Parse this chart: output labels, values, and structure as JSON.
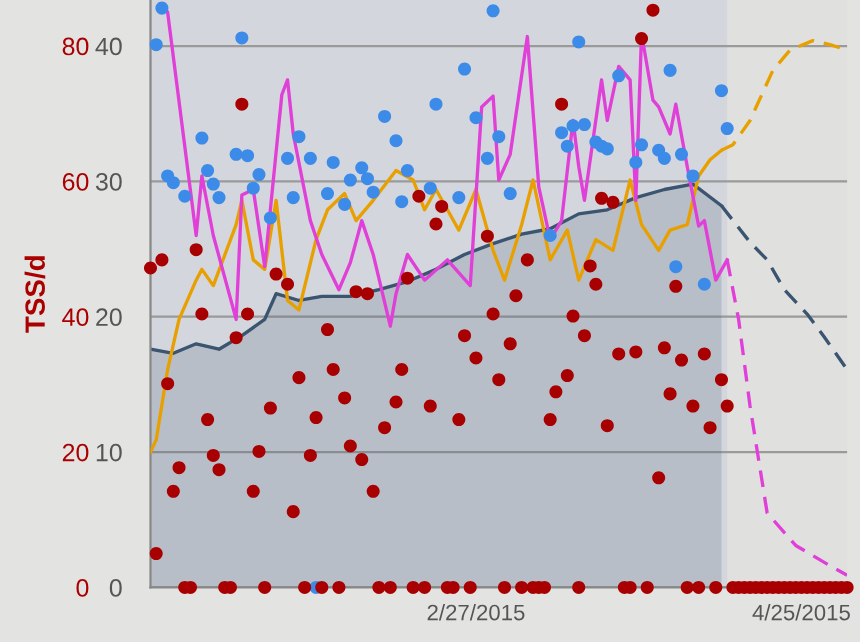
{
  "chart_data": {
    "type": "line",
    "y2label": "TSS/d",
    "xlim": [
      "2015-01-01",
      "2015-05-03"
    ],
    "xticks": [
      {
        "value": "2015-02-27",
        "label": "2/27/2015"
      },
      {
        "value": "2015-04-25",
        "label": "4/25/2015"
      }
    ],
    "ylim": [
      0,
      43.4
    ],
    "yticks": [
      0,
      10,
      20,
      30,
      40
    ],
    "y2lim": [
      0,
      86.8
    ],
    "y2ticks": [
      0,
      20,
      40,
      60,
      80
    ],
    "grid": "y",
    "bands": [
      {
        "axis": "x",
        "from": "2015-01-01",
        "to": "2015-04-12",
        "color": "#d3d6dc"
      }
    ],
    "series": [
      {
        "type": "area",
        "color": "#3b5470",
        "x": [
          "2015-01-01",
          "2015-01-05",
          "2015-01-09",
          "2015-01-13",
          "2015-01-17",
          "2015-01-21",
          "2015-01-23",
          "2015-01-27",
          "2015-01-31",
          "2015-02-05",
          "2015-02-10",
          "2015-02-15",
          "2015-02-20",
          "2015-02-25",
          "2015-03-02",
          "2015-03-07",
          "2015-03-12",
          "2015-03-17",
          "2015-03-22",
          "2015-03-27",
          "2015-04-01",
          "2015-04-06",
          "2015-04-11"
        ],
        "values": [
          17.6,
          17.3,
          18.0,
          17.6,
          18.6,
          19.8,
          21.7,
          21.2,
          21.5,
          21.5,
          22.0,
          22.6,
          23.5,
          24.6,
          25.4,
          26.1,
          26.5,
          27.6,
          27.9,
          28.8,
          29.4,
          29.8,
          28.2
        ]
      },
      {
        "line_style": "dashed",
        "color": "#3b5470",
        "x": [
          "2015-04-11",
          "2015-04-16",
          "2015-04-19",
          "2015-04-22",
          "2015-04-26",
          "2015-04-29",
          "2015-05-03"
        ],
        "values": [
          28.2,
          25.5,
          24.2,
          22.0,
          20.2,
          18.5,
          16.1
        ]
      },
      {
        "color": "#e8a000",
        "x": [
          "2015-01-01",
          "2015-01-02",
          "2015-01-04",
          "2015-01-06",
          "2015-01-09",
          "2015-01-10",
          "2015-01-12",
          "2015-01-16",
          "2015-01-17",
          "2015-01-19",
          "2015-01-21",
          "2015-01-23",
          "2015-01-25",
          "2015-01-27",
          "2015-01-30",
          "2015-02-01",
          "2015-02-04",
          "2015-02-06",
          "2015-02-09",
          "2015-02-13",
          "2015-02-16",
          "2015-02-18",
          "2015-02-20",
          "2015-02-22",
          "2015-02-24",
          "2015-02-27",
          "2015-03-02",
          "2015-03-04",
          "2015-03-07",
          "2015-03-09",
          "2015-03-12",
          "2015-03-15",
          "2015-03-17",
          "2015-03-20",
          "2015-03-23",
          "2015-03-26",
          "2015-03-28",
          "2015-03-31",
          "2015-04-02",
          "2015-04-05",
          "2015-04-07",
          "2015-04-09",
          "2015-04-11"
        ],
        "values": [
          10.0,
          10.9,
          16.1,
          19.8,
          22.7,
          23.5,
          22.3,
          26.8,
          28.6,
          24.2,
          23.5,
          28.6,
          21.2,
          20.5,
          25.7,
          27.9,
          29.1,
          27.1,
          28.6,
          30.8,
          30.1,
          27.9,
          29.4,
          27.9,
          26.4,
          29.4,
          24.9,
          22.7,
          26.8,
          30.1,
          24.2,
          26.4,
          22.7,
          25.7,
          24.9,
          30.1,
          26.8,
          24.9,
          26.4,
          26.8,
          30.4,
          31.6,
          32.3
        ]
      },
      {
        "line_style": "dashed",
        "color": "#e8a000",
        "x": [
          "2015-04-11",
          "2015-04-13",
          "2015-04-16",
          "2015-04-20",
          "2015-04-23",
          "2015-04-27",
          "2015-04-30",
          "2015-05-03"
        ],
        "values": [
          32.3,
          32.7,
          34.5,
          38.2,
          39.7,
          40.4,
          40.1,
          39.7
        ]
      },
      {
        "color": "#e040d8",
        "x": [
          "2015-01-03",
          "2015-01-04",
          "2015-01-09",
          "2015-01-10",
          "2015-01-12",
          "2015-01-16",
          "2015-01-17",
          "2015-01-19",
          "2015-01-21",
          "2015-01-24",
          "2015-01-25",
          "2015-01-26",
          "2015-01-29",
          "2015-01-31",
          "2015-02-03",
          "2015-02-05",
          "2015-02-07",
          "2015-02-09",
          "2015-02-12",
          "2015-02-13",
          "2015-02-15",
          "2015-02-18",
          "2015-02-22",
          "2015-02-26",
          "2015-02-28",
          "2015-03-02",
          "2015-03-03",
          "2015-03-05",
          "2015-03-08",
          "2015-03-10",
          "2015-03-12",
          "2015-03-14",
          "2015-03-16",
          "2015-03-17",
          "2015-03-18",
          "2015-03-21",
          "2015-03-22",
          "2015-03-24",
          "2015-03-26",
          "2015-03-27",
          "2015-03-28",
          "2015-03-30",
          "2015-03-31",
          "2015-04-02",
          "2015-04-03",
          "2015-04-05",
          "2015-04-07",
          "2015-04-08",
          "2015-04-10",
          "2015-04-12"
        ],
        "values": [
          43.0,
          42.5,
          26.0,
          30.4,
          26.0,
          19.8,
          29.0,
          29.4,
          23.7,
          36.4,
          37.5,
          33.5,
          27.1,
          24.6,
          22.0,
          24.0,
          27.1,
          24.6,
          19.3,
          21.7,
          24.6,
          22.7,
          24.2,
          22.3,
          35.5,
          36.3,
          30.1,
          32.0,
          40.7,
          29.6,
          25.7,
          27.1,
          34.5,
          31.1,
          28.6,
          37.5,
          34.5,
          38.5,
          37.5,
          28.6,
          40.9,
          36.0,
          35.5,
          33.5,
          35.7,
          31.1,
          26.7,
          27.1,
          22.7,
          24.2
        ]
      },
      {
        "line_style": "dashed",
        "color": "#e040d8",
        "x": [
          "2015-04-12",
          "2015-04-14",
          "2015-04-16",
          "2015-04-19",
          "2015-04-24",
          "2015-04-30",
          "2015-05-03"
        ],
        "values": [
          24.2,
          19.8,
          13.4,
          5.5,
          3.1,
          1.6,
          0.9
        ]
      },
      {
        "type": "scatter",
        "marker": "circle",
        "color": "#3d8be8",
        "x": [
          "2015-01-02",
          "2015-01-03",
          "2015-01-04",
          "2015-01-05",
          "2015-01-07",
          "2015-01-10",
          "2015-01-11",
          "2015-01-12",
          "2015-01-13",
          "2015-01-16",
          "2015-01-17",
          "2015-01-18",
          "2015-01-19",
          "2015-01-20",
          "2015-01-22",
          "2015-01-25",
          "2015-01-26",
          "2015-01-27",
          "2015-01-29",
          "2015-01-30",
          "2015-02-01",
          "2015-02-02",
          "2015-02-04",
          "2015-02-05",
          "2015-02-07",
          "2015-02-08",
          "2015-02-09",
          "2015-02-11",
          "2015-02-13",
          "2015-02-14",
          "2015-02-15",
          "2015-02-19",
          "2015-02-20",
          "2015-02-24",
          "2015-02-25",
          "2015-02-27",
          "2015-03-01",
          "2015-03-02",
          "2015-03-03",
          "2015-03-05",
          "2015-03-12",
          "2015-03-14",
          "2015-03-15",
          "2015-03-16",
          "2015-03-17",
          "2015-03-18",
          "2015-03-20",
          "2015-03-21",
          "2015-03-22",
          "2015-03-24",
          "2015-03-27",
          "2015-03-28",
          "2015-03-31",
          "2015-04-01",
          "2015-04-02",
          "2015-04-03",
          "2015-04-04",
          "2015-04-06",
          "2015-04-08",
          "2015-04-11",
          "2015-04-12"
        ],
        "values": [
          40.1,
          42.8,
          30.4,
          29.9,
          28.9,
          33.2,
          30.8,
          29.8,
          28.8,
          32.0,
          40.6,
          31.9,
          29.5,
          30.5,
          27.3,
          31.7,
          28.8,
          33.3,
          31.7,
          0,
          29.1,
          31.4,
          28.3,
          30.1,
          31.0,
          30.2,
          29.2,
          34.8,
          33.0,
          28.5,
          30.8,
          29.5,
          35.7,
          28.8,
          38.3,
          34.7,
          31.7,
          42.6,
          33.3,
          29.1,
          26.0,
          33.6,
          32.6,
          34.1,
          40.3,
          34.2,
          32.9,
          32.6,
          32.4,
          37.8,
          31.4,
          32.7,
          32.3,
          31.7,
          38.2,
          23.7,
          32.0,
          30.4,
          22.4,
          36.7,
          33.9
        ]
      },
      {
        "type": "scatter",
        "marker": "circle",
        "axis": "y2",
        "color": "#a80000",
        "x": [
          "2015-01-01",
          "2015-01-02",
          "2015-01-03",
          "2015-01-04",
          "2015-01-05",
          "2015-01-06",
          "2015-01-07",
          "2015-01-08",
          "2015-01-09",
          "2015-01-10",
          "2015-01-11",
          "2015-01-12",
          "2015-01-13",
          "2015-01-14",
          "2015-01-15",
          "2015-01-16",
          "2015-01-17",
          "2015-01-18",
          "2015-01-19",
          "2015-01-20",
          "2015-01-21",
          "2015-01-22",
          "2015-01-23",
          "2015-01-25",
          "2015-01-26",
          "2015-01-27",
          "2015-01-28",
          "2015-01-29",
          "2015-01-30",
          "2015-01-31",
          "2015-02-01",
          "2015-02-02",
          "2015-02-03",
          "2015-02-04",
          "2015-02-05",
          "2015-02-06",
          "2015-02-07",
          "2015-02-08",
          "2015-02-09",
          "2015-02-10",
          "2015-02-11",
          "2015-02-12",
          "2015-02-13",
          "2015-02-14",
          "2015-02-15",
          "2015-02-16",
          "2015-02-17",
          "2015-02-18",
          "2015-02-19",
          "2015-02-20",
          "2015-02-21",
          "2015-02-22",
          "2015-02-23",
          "2015-02-24",
          "2015-02-25",
          "2015-02-26",
          "2015-02-27",
          "2015-03-01",
          "2015-03-02",
          "2015-03-03",
          "2015-03-04",
          "2015-03-05",
          "2015-03-06",
          "2015-03-07",
          "2015-03-08",
          "2015-03-09",
          "2015-03-10",
          "2015-03-11",
          "2015-03-12",
          "2015-03-13",
          "2015-03-14",
          "2015-03-15",
          "2015-03-16",
          "2015-03-17",
          "2015-03-18",
          "2015-03-19",
          "2015-03-20",
          "2015-03-21",
          "2015-03-22",
          "2015-03-23",
          "2015-03-24",
          "2015-03-25",
          "2015-03-26",
          "2015-03-27",
          "2015-03-28",
          "2015-03-29",
          "2015-03-30",
          "2015-03-31",
          "2015-04-01",
          "2015-04-02",
          "2015-04-03",
          "2015-04-04",
          "2015-04-05",
          "2015-04-06",
          "2015-04-07",
          "2015-04-08",
          "2015-04-09",
          "2015-04-10",
          "2015-04-11",
          "2015-04-12",
          "2015-04-13",
          "2015-04-14",
          "2015-04-15",
          "2015-04-16",
          "2015-04-17",
          "2015-04-18",
          "2015-04-19",
          "2015-04-20",
          "2015-04-21",
          "2015-04-22",
          "2015-04-23",
          "2015-04-24",
          "2015-04-25",
          "2015-04-26",
          "2015-04-27",
          "2015-04-28",
          "2015-04-29",
          "2015-04-30",
          "2015-05-01",
          "2015-05-02",
          "2015-05-03"
        ],
        "values": [
          47.2,
          5.0,
          48.4,
          30.1,
          14.2,
          17.7,
          0,
          0,
          49.9,
          40.4,
          24.8,
          19.5,
          17.4,
          0,
          0,
          36.9,
          71.4,
          40.4,
          14.2,
          20.1,
          0,
          26.5,
          46.3,
          44.8,
          11.2,
          31.0,
          0,
          19.5,
          25.1,
          0,
          38.1,
          32.2,
          0,
          28.0,
          20.9,
          43.7,
          18.9,
          43.4,
          14.2,
          0,
          23.6,
          0,
          27.4,
          32.2,
          45.7,
          0,
          57.8,
          0,
          26.8,
          53.7,
          56.3,
          0,
          0,
          24.8,
          37.2,
          0,
          33.9,
          51.9,
          40.4,
          30.7,
          0,
          36.0,
          43.1,
          0,
          48.4,
          0,
          0,
          0,
          24.8,
          28.9,
          71.4,
          31.3,
          40.1,
          0,
          37.2,
          47.5,
          44.8,
          57.5,
          23.9,
          56.9,
          34.5,
          0,
          0,
          34.8,
          81.1,
          0,
          85.3,
          16.2,
          35.4,
          28.6,
          44.5,
          33.6,
          0,
          26.8,
          0,
          34.5,
          23.6,
          0,
          30.7,
          26.8,
          0,
          0,
          0,
          0,
          0,
          0,
          0,
          0,
          0,
          0,
          0,
          0,
          0,
          0,
          0,
          0,
          0,
          0,
          0,
          0,
          0
        ]
      }
    ]
  }
}
